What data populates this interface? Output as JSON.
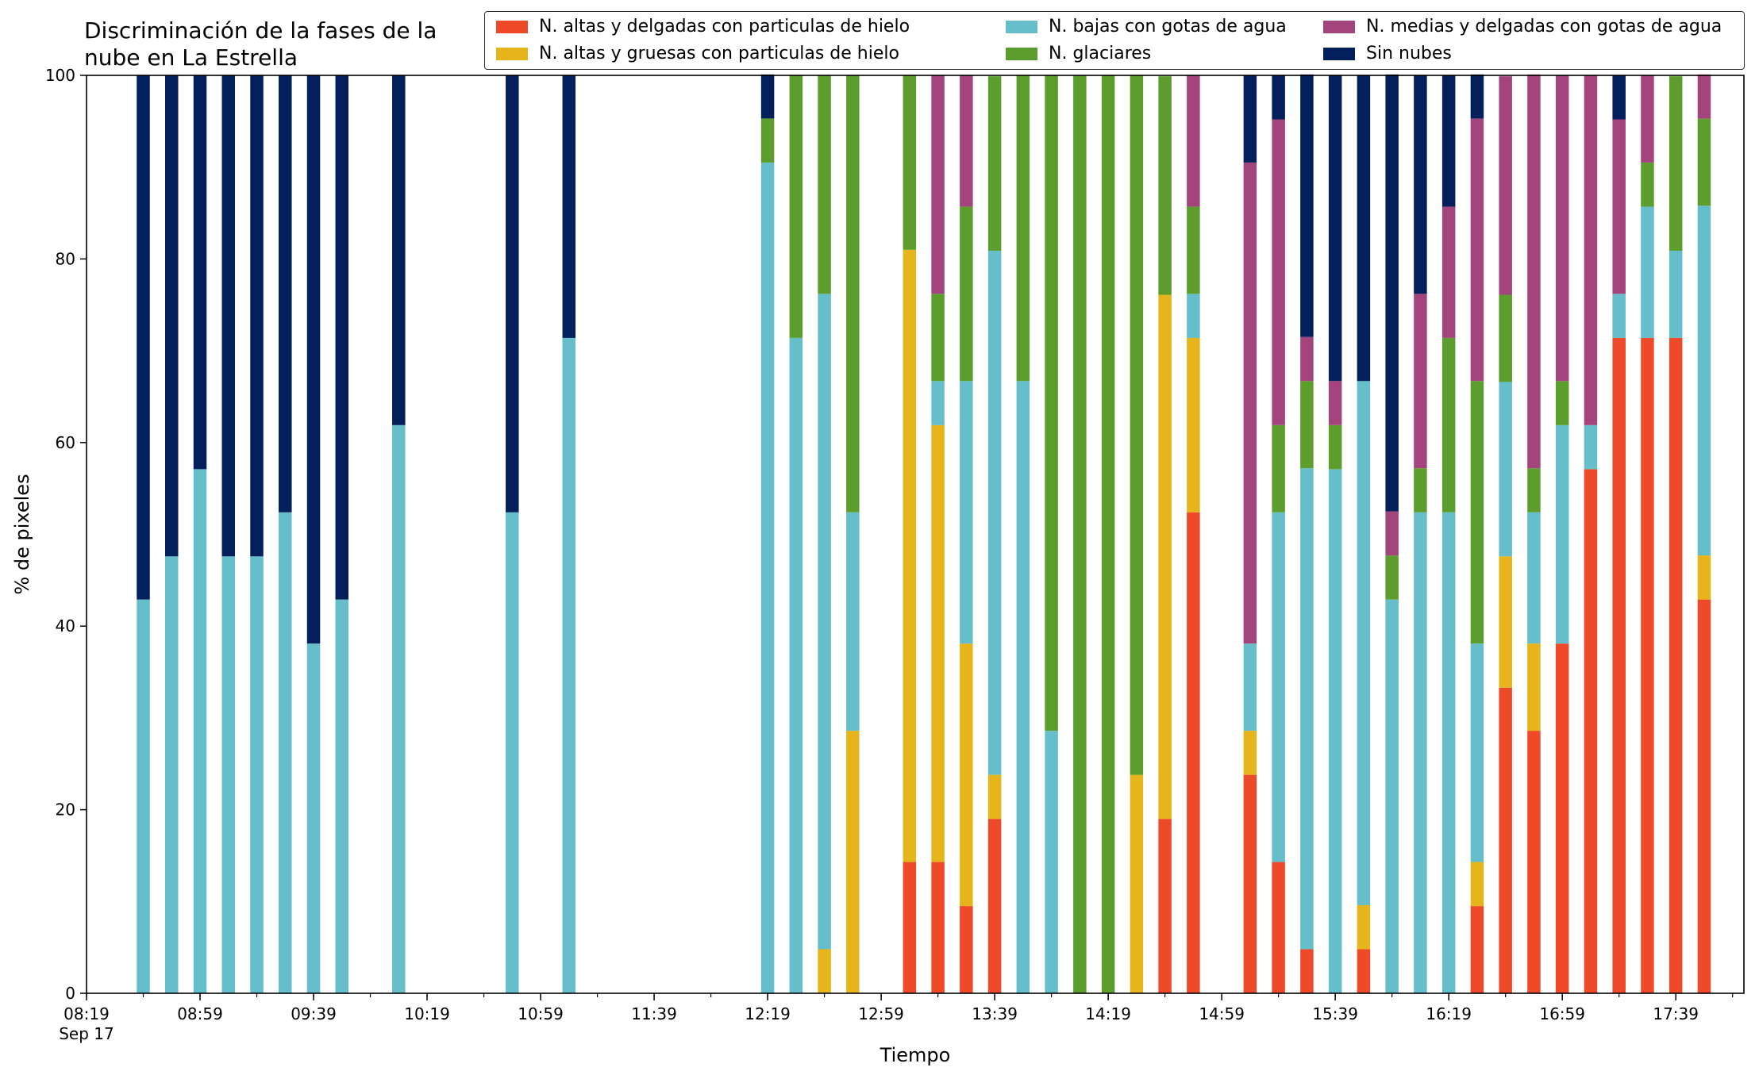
{
  "chart_data": {
    "type": "bar",
    "stacked": true,
    "title": "Discriminación de la fases de la\nnube en La Estrella",
    "xlabel": "Tiempo",
    "ylabel": "% de pixeles",
    "ylim": [
      0,
      100
    ],
    "yticks": [
      0,
      20,
      40,
      60,
      80,
      100
    ],
    "xlim": [
      "08:19",
      "18:03"
    ],
    "xtick_labels": [
      "08:19",
      "08:59",
      "09:39",
      "10:19",
      "10:59",
      "11:39",
      "12:19",
      "12:59",
      "13:39",
      "14:19",
      "14:59",
      "15:39",
      "16:19",
      "16:59",
      "17:39"
    ],
    "xtick_sublabel": "Sep 17",
    "legend_position": "top-right",
    "grid": false,
    "series": [
      {
        "name": "N. altas y delgadas con particulas de hielo",
        "color": "#ee4a2a"
      },
      {
        "name": "N. altas y gruesas con particulas de hielo",
        "color": "#e5b51b"
      },
      {
        "name": "N. bajas con gotas de agua",
        "color": "#65bec9"
      },
      {
        "name": "N. glaciares",
        "color": "#5c9d2e"
      },
      {
        "name": "N. medias y delgadas con gotas de agua",
        "color": "#a4447c"
      },
      {
        "name": "Sin nubes",
        "color": "#031f5c"
      }
    ],
    "x": [
      "08:39",
      "08:49",
      "08:59",
      "09:09",
      "09:19",
      "09:29",
      "09:39",
      "09:49",
      "10:09",
      "10:49",
      "11:09",
      "12:19",
      "12:29",
      "12:39",
      "12:49",
      "13:09",
      "13:19",
      "13:29",
      "13:39",
      "13:49",
      "13:59",
      "14:09",
      "14:19",
      "14:29",
      "14:39",
      "14:49",
      "15:09",
      "15:19",
      "15:29",
      "15:39",
      "15:49",
      "15:59",
      "16:09",
      "16:19",
      "16:29",
      "16:39",
      "16:49",
      "16:59",
      "17:09",
      "17:19",
      "17:29",
      "17:39",
      "17:49"
    ],
    "values": [
      [
        0,
        0,
        42.9,
        0,
        0,
        57.1
      ],
      [
        0,
        0,
        47.6,
        0,
        0,
        52.4
      ],
      [
        0,
        0,
        57.1,
        0,
        0,
        42.9
      ],
      [
        0,
        0,
        47.6,
        0,
        0,
        52.4
      ],
      [
        0,
        0,
        47.6,
        0,
        0,
        52.4
      ],
      [
        0,
        0,
        52.4,
        0,
        0,
        47.6
      ],
      [
        0,
        0,
        38.1,
        0,
        0,
        61.9
      ],
      [
        0,
        0,
        42.9,
        0,
        0,
        57.1
      ],
      [
        0,
        0,
        61.9,
        0,
        0,
        38.1
      ],
      [
        0,
        0,
        52.4,
        0,
        0,
        47.6
      ],
      [
        0,
        0,
        71.4,
        0,
        0,
        28.6
      ],
      [
        0,
        0,
        90.5,
        4.8,
        0,
        4.8
      ],
      [
        0,
        0,
        71.4,
        28.6,
        0,
        0
      ],
      [
        0,
        4.8,
        71.4,
        23.8,
        0,
        0
      ],
      [
        0,
        28.6,
        23.8,
        47.6,
        0,
        0
      ],
      [
        14.3,
        66.7,
        0,
        19.0,
        0,
        0
      ],
      [
        14.3,
        47.6,
        4.8,
        9.5,
        23.8,
        0
      ],
      [
        9.5,
        28.6,
        28.6,
        19.0,
        14.3,
        0
      ],
      [
        19.0,
        4.8,
        57.1,
        19.0,
        0,
        0
      ],
      [
        0,
        0,
        66.7,
        33.3,
        0,
        0
      ],
      [
        0,
        0,
        28.6,
        71.4,
        0,
        0
      ],
      [
        0,
        0,
        0,
        100,
        0,
        0
      ],
      [
        0,
        0,
        0,
        100,
        0,
        0
      ],
      [
        0,
        23.8,
        0,
        76.2,
        0,
        0
      ],
      [
        19.0,
        57.1,
        0,
        23.8,
        0,
        0
      ],
      [
        52.4,
        19.0,
        4.8,
        9.5,
        14.3,
        0
      ],
      [
        23.8,
        4.8,
        9.5,
        0,
        52.4,
        9.5
      ],
      [
        14.3,
        0,
        38.1,
        9.5,
        33.3,
        4.8
      ],
      [
        4.8,
        0,
        52.4,
        9.5,
        4.8,
        28.6
      ],
      [
        0,
        0,
        57.1,
        4.8,
        4.8,
        33.3
      ],
      [
        4.8,
        4.8,
        57.1,
        0,
        0,
        33.3
      ],
      [
        0,
        0,
        42.9,
        4.8,
        4.8,
        47.6
      ],
      [
        0,
        0,
        52.4,
        4.8,
        19.0,
        23.8
      ],
      [
        0,
        0,
        52.4,
        19.0,
        14.3,
        14.3
      ],
      [
        9.5,
        4.8,
        23.8,
        28.6,
        28.6,
        4.8
      ],
      [
        33.3,
        14.3,
        19.0,
        9.5,
        23.8,
        0
      ],
      [
        28.6,
        9.5,
        14.3,
        4.8,
        42.9,
        0
      ],
      [
        38.1,
        0,
        23.8,
        4.8,
        33.3,
        0
      ],
      [
        57.1,
        0,
        4.8,
        0,
        38.1,
        0
      ],
      [
        71.4,
        0,
        4.8,
        0,
        19.0,
        4.8
      ],
      [
        71.4,
        0,
        14.3,
        4.8,
        9.5,
        0
      ],
      [
        71.4,
        0,
        9.5,
        19.0,
        0,
        0
      ],
      [
        42.9,
        4.8,
        38.1,
        9.5,
        4.8,
        0
      ]
    ]
  }
}
